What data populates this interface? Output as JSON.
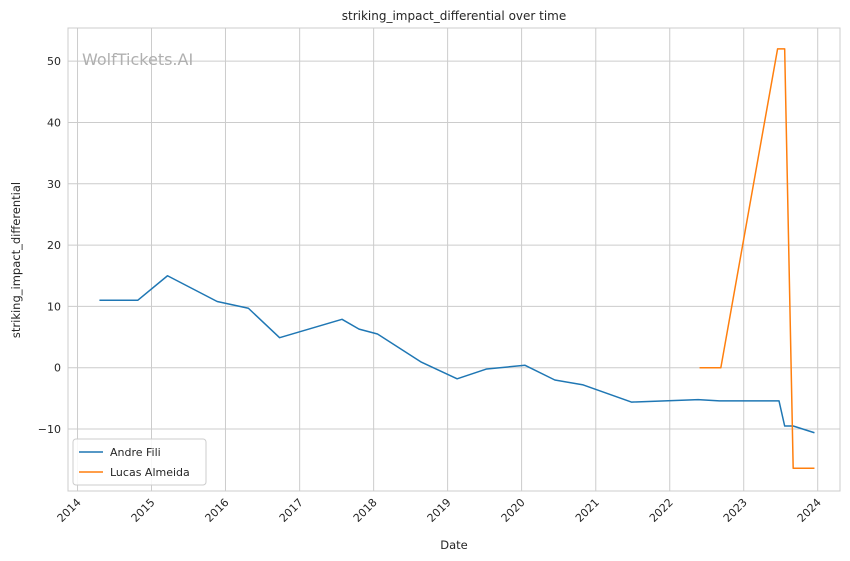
{
  "chart_data": {
    "type": "line",
    "title": "striking_impact_differential over time",
    "xlabel": "Date",
    "ylabel": "striking_impact_differential",
    "watermark": "WolfTickets.AI",
    "x_type": "date",
    "xlim": [
      "2013-11-15",
      "2024-04-20"
    ],
    "ylim": [
      -20.1,
      55.4
    ],
    "x_ticks": [
      "2014",
      "2015",
      "2016",
      "2017",
      "2018",
      "2019",
      "2020",
      "2021",
      "2022",
      "2023",
      "2024"
    ],
    "y_ticks": [
      -10,
      0,
      10,
      20,
      30,
      40,
      50
    ],
    "grid": true,
    "legend_position": "lower-left",
    "series": [
      {
        "name": "Andre Fili",
        "color": "#1f77b4",
        "points": [
          [
            "2014-04-19",
            11.0
          ],
          [
            "2014-10-25",
            11.0
          ],
          [
            "2015-03-21",
            15.0
          ],
          [
            "2015-11-21",
            10.8
          ],
          [
            "2016-04-23",
            9.7
          ],
          [
            "2016-09-24",
            4.9
          ],
          [
            "2017-07-29",
            7.9
          ],
          [
            "2017-10-21",
            6.3
          ],
          [
            "2018-01-20",
            5.5
          ],
          [
            "2018-08-25",
            0.9
          ],
          [
            "2019-02-17",
            -1.8
          ],
          [
            "2019-07-13",
            -0.2
          ],
          [
            "2020-01-18",
            0.4
          ],
          [
            "2020-06-13",
            -2.0
          ],
          [
            "2020-10-31",
            -2.8
          ],
          [
            "2021-06-26",
            -5.6
          ],
          [
            "2022-05-21",
            -5.2
          ],
          [
            "2022-09-03",
            -5.4
          ],
          [
            "2023-06-24",
            -5.4
          ],
          [
            "2023-07-22",
            -9.5
          ],
          [
            "2023-09-02",
            -9.5
          ],
          [
            "2023-12-16",
            -10.6
          ]
        ]
      },
      {
        "name": "Lucas Almeida",
        "color": "#ff7f0e",
        "points": [
          [
            "2022-05-28",
            0.0
          ],
          [
            "2022-09-10",
            0.0
          ],
          [
            "2023-06-17",
            52.0
          ],
          [
            "2023-07-22",
            52.0
          ],
          [
            "2023-09-02",
            -16.4
          ],
          [
            "2023-12-16",
            -16.4
          ]
        ]
      }
    ]
  }
}
